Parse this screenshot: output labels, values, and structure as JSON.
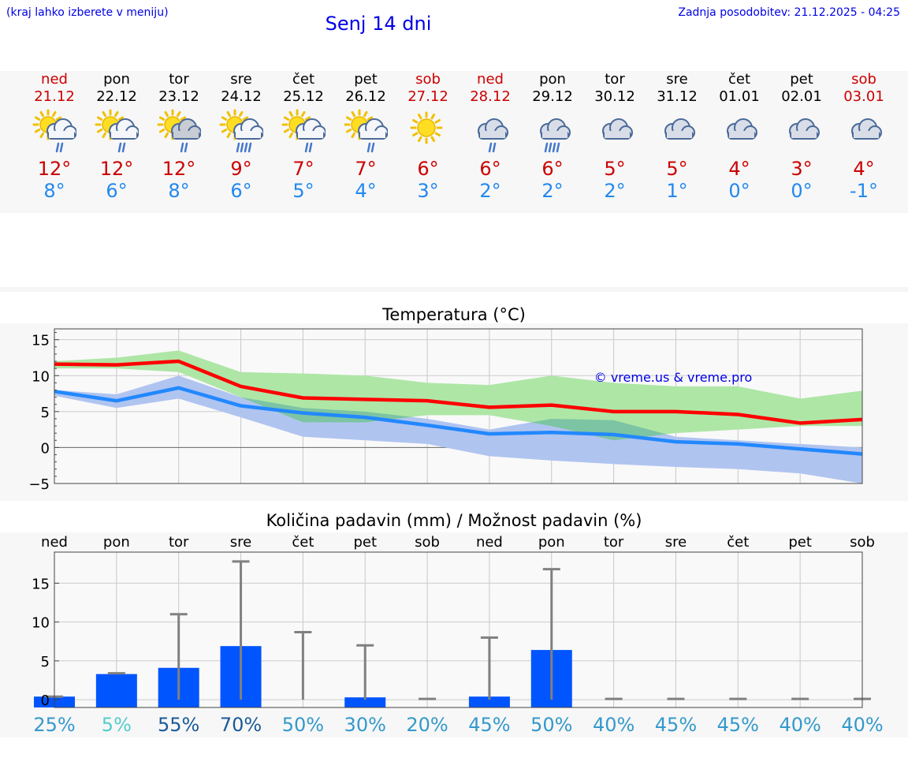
{
  "header": {
    "menu_hint": "(kraj lahko izberete v meniju)",
    "title": "Senj 14 dni",
    "last_update": "Zadnja posodobitev: 21.12.2025 - 04:25"
  },
  "days": [
    {
      "name": "ned",
      "date": "21.12",
      "weekend": true,
      "icon": "sun-cloud-rain-icon",
      "tmax": "12°",
      "tmin": "8°"
    },
    {
      "name": "pon",
      "date": "22.12",
      "weekend": false,
      "icon": "sun-cloud-rain-icon",
      "tmax": "12°",
      "tmin": "6°"
    },
    {
      "name": "tor",
      "date": "23.12",
      "weekend": false,
      "icon": "sun-grey-cloud-rain-icon",
      "tmax": "12°",
      "tmin": "8°"
    },
    {
      "name": "sre",
      "date": "24.12",
      "weekend": false,
      "icon": "sun-cloud-heavy-rain-icon",
      "tmax": "9°",
      "tmin": "6°"
    },
    {
      "name": "čet",
      "date": "25.12",
      "weekend": false,
      "icon": "sun-cloud-rain-icon",
      "tmax": "7°",
      "tmin": "5°"
    },
    {
      "name": "pet",
      "date": "26.12",
      "weekend": false,
      "icon": "sun-cloud-rain-icon",
      "tmax": "7°",
      "tmin": "4°"
    },
    {
      "name": "sob",
      "date": "27.12",
      "weekend": true,
      "icon": "sun-icon",
      "tmax": "6°",
      "tmin": "3°"
    },
    {
      "name": "ned",
      "date": "28.12",
      "weekend": true,
      "icon": "cloud-rain-icon",
      "tmax": "6°",
      "tmin": "2°"
    },
    {
      "name": "pon",
      "date": "29.12",
      "weekend": false,
      "icon": "cloud-heavy-rain-icon",
      "tmax": "6°",
      "tmin": "2°"
    },
    {
      "name": "tor",
      "date": "30.12",
      "weekend": false,
      "icon": "cloud-icon",
      "tmax": "5°",
      "tmin": "2°"
    },
    {
      "name": "sre",
      "date": "31.12",
      "weekend": false,
      "icon": "cloud-icon",
      "tmax": "5°",
      "tmin": "1°"
    },
    {
      "name": "čet",
      "date": "01.01",
      "weekend": false,
      "icon": "cloud-icon",
      "tmax": "4°",
      "tmin": "0°"
    },
    {
      "name": "pet",
      "date": "02.01",
      "weekend": false,
      "icon": "cloud-icon",
      "tmax": "3°",
      "tmin": "0°"
    },
    {
      "name": "sob",
      "date": "03.01",
      "weekend": true,
      "icon": "cloud-icon",
      "tmax": "4°",
      "tmin": "-1°"
    }
  ],
  "colors": {
    "weekend": "#cc0000",
    "weekday": "#000000",
    "max_line": "#ff0000",
    "min_line": "#2288ff",
    "max_band": "#aee6a6",
    "min_band": "#b0c4f0",
    "overlap_band": "#7cc4a4",
    "precip_bar": "#0055ff",
    "errbar": "#808080"
  },
  "chart_data": [
    {
      "type": "line",
      "title": "Temperatura (°C)",
      "watermark": "© vreme.us & vreme.pro",
      "x": [
        0,
        1,
        2,
        3,
        4,
        5,
        6,
        7,
        8,
        9,
        10,
        11,
        12,
        13
      ],
      "ylim": [
        -5,
        16.5
      ],
      "yticks": [
        15,
        10,
        5,
        0,
        -5
      ],
      "ytick_labels": [
        "15",
        "10",
        "5",
        "0",
        "−5"
      ],
      "series": [
        {
          "name": "max",
          "values": [
            11.6,
            11.5,
            12.0,
            8.5,
            6.9,
            6.7,
            6.5,
            5.6,
            5.9,
            5.0,
            5.0,
            4.6,
            3.4,
            3.9
          ],
          "band_low": [
            11.0,
            11.0,
            10.5,
            7.0,
            3.5,
            3.5,
            4.5,
            4.5,
            3.0,
            1.0,
            2.0,
            2.5,
            3.0,
            3.0
          ],
          "band_high": [
            12.0,
            12.5,
            13.5,
            10.5,
            10.3,
            10.0,
            9.0,
            8.7,
            10.0,
            9.0,
            8.5,
            8.5,
            6.8,
            7.9
          ]
        },
        {
          "name": "min",
          "values": [
            7.8,
            6.5,
            8.3,
            5.8,
            4.8,
            4.2,
            3.1,
            1.9,
            2.1,
            1.8,
            0.8,
            0.5,
            -0.2,
            -0.9
          ],
          "band_low": [
            7.2,
            5.5,
            6.8,
            4.2,
            1.5,
            1.0,
            0.5,
            -1.2,
            -1.8,
            -2.3,
            -2.7,
            -3.0,
            -3.6,
            -5.0
          ],
          "band_high": [
            8.0,
            7.4,
            10.0,
            7.0,
            5.5,
            5.0,
            4.0,
            2.5,
            4.0,
            3.8,
            1.5,
            1.0,
            0.5,
            0.0
          ]
        }
      ]
    },
    {
      "type": "bar",
      "title": "Količina padavin (mm) / Možnost padavin (%)",
      "categories": [
        "ned",
        "pon",
        "tor",
        "sre",
        "čet",
        "pet",
        "sob",
        "ned",
        "pon",
        "tor",
        "sre",
        "čet",
        "pet",
        "sob"
      ],
      "ylim": [
        -1,
        19
      ],
      "yticks": [
        15,
        10,
        5,
        0
      ],
      "values": [
        0.3,
        3.2,
        4.0,
        6.8,
        0,
        0.2,
        0,
        0.3,
        6.3,
        0,
        0,
        0,
        0,
        0
      ],
      "error_high": [
        0.4,
        3.4,
        11.0,
        17.8,
        8.7,
        7.0,
        0.1,
        8.0,
        16.8,
        0.1,
        0.1,
        0.1,
        0.1,
        0.1
      ],
      "error_low": [
        0.2,
        3.0,
        0,
        0,
        0,
        0,
        0,
        0,
        0,
        0,
        0,
        0,
        0,
        0
      ],
      "probability_labels": [
        "25%",
        "5%",
        "55%",
        "70%",
        "50%",
        "30%",
        "20%",
        "45%",
        "50%",
        "40%",
        "45%",
        "45%",
        "40%",
        "40%"
      ],
      "probability_colors": [
        "#3399cc",
        "#55cccc",
        "#1a5a99",
        "#1a5a99",
        "#3399cc",
        "#3399cc",
        "#3399cc",
        "#3399cc",
        "#3399cc",
        "#3399cc",
        "#3399cc",
        "#3399cc",
        "#3399cc",
        "#3399cc"
      ]
    }
  ]
}
